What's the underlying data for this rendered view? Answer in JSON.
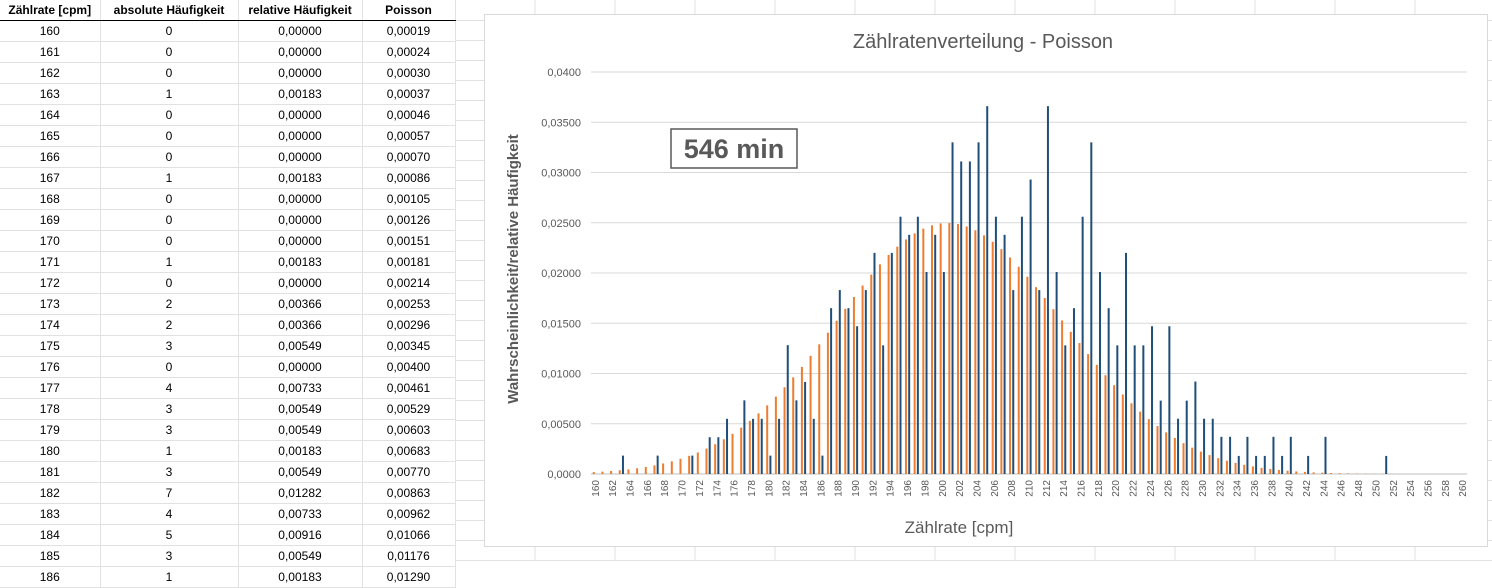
{
  "table": {
    "headers": [
      "Zählrate [cpm]",
      "absolute Häufigkeit",
      "relative Häufigkeit",
      "Poisson"
    ],
    "rows": [
      [
        "160",
        "0",
        "0,00000",
        "0,00019"
      ],
      [
        "161",
        "0",
        "0,00000",
        "0,00024"
      ],
      [
        "162",
        "0",
        "0,00000",
        "0,00030"
      ],
      [
        "163",
        "1",
        "0,00183",
        "0,00037"
      ],
      [
        "164",
        "0",
        "0,00000",
        "0,00046"
      ],
      [
        "165",
        "0",
        "0,00000",
        "0,00057"
      ],
      [
        "166",
        "0",
        "0,00000",
        "0,00070"
      ],
      [
        "167",
        "1",
        "0,00183",
        "0,00086"
      ],
      [
        "168",
        "0",
        "0,00000",
        "0,00105"
      ],
      [
        "169",
        "0",
        "0,00000",
        "0,00126"
      ],
      [
        "170",
        "0",
        "0,00000",
        "0,00151"
      ],
      [
        "171",
        "1",
        "0,00183",
        "0,00181"
      ],
      [
        "172",
        "0",
        "0,00000",
        "0,00214"
      ],
      [
        "173",
        "2",
        "0,00366",
        "0,00253"
      ],
      [
        "174",
        "2",
        "0,00366",
        "0,00296"
      ],
      [
        "175",
        "3",
        "0,00549",
        "0,00345"
      ],
      [
        "176",
        "0",
        "0,00000",
        "0,00400"
      ],
      [
        "177",
        "4",
        "0,00733",
        "0,00461"
      ],
      [
        "178",
        "3",
        "0,00549",
        "0,00529"
      ],
      [
        "179",
        "3",
        "0,00549",
        "0,00603"
      ],
      [
        "180",
        "1",
        "0,00183",
        "0,00683"
      ],
      [
        "181",
        "3",
        "0,00549",
        "0,00770"
      ],
      [
        "182",
        "7",
        "0,01282",
        "0,00863"
      ],
      [
        "183",
        "4",
        "0,00733",
        "0,00962"
      ],
      [
        "184",
        "5",
        "0,00916",
        "0,01066"
      ],
      [
        "185",
        "3",
        "0,00549",
        "0,01176"
      ],
      [
        "186",
        "1",
        "0,00183",
        "0,01290"
      ]
    ]
  },
  "chart_data": {
    "type": "bar",
    "title": "Zählratenverteilung - Poisson",
    "xlabel": "Zählrate [cpm]",
    "ylabel": "Wahrscheinlichkeit/relative Häufigkeit",
    "annotation": "546 min",
    "ylim": [
      0,
      0.04
    ],
    "yticks": [
      "0,0000",
      "0,00500",
      "0,01000",
      "0,01500",
      "0,02000",
      "0,02500",
      "0,03000",
      "0,03500",
      "0,0400"
    ],
    "x_start": 160,
    "x_end": 260,
    "xtick_step": 2,
    "grid": true,
    "legend": "none",
    "colors": {
      "relative": "#1f4e79",
      "poisson": "#ed7d31"
    },
    "series": [
      {
        "key": "relative",
        "values": [
          0,
          0,
          0,
          0.00183,
          0,
          0,
          0,
          0.00183,
          0,
          0,
          0,
          0.00183,
          0,
          0.00366,
          0.00366,
          0.00549,
          0,
          0.00733,
          0.00549,
          0.00549,
          0.00183,
          0.00549,
          0.01282,
          0.00733,
          0.00916,
          0.00549,
          0.00183,
          0.0165,
          0.0183,
          0.0165,
          0.0147,
          0.0183,
          0.022,
          0.0128,
          0.022,
          0.0256,
          0.0238,
          0.0256,
          0.0201,
          0.0238,
          0.0201,
          0.033,
          0.0311,
          0.0311,
          0.033,
          0.0366,
          0.0256,
          0.0238,
          0.0183,
          0.0256,
          0.0293,
          0.0183,
          0.0366,
          0.0201,
          0.0128,
          0.0165,
          0.0256,
          0.033,
          0.0201,
          0.0165,
          0.0128,
          0.022,
          0.0128,
          0.0128,
          0.0147,
          0.0073,
          0.0147,
          0.0055,
          0.0073,
          0.0092,
          0.0055,
          0.0055,
          0.0037,
          0.0037,
          0.0018,
          0.0037,
          0.0018,
          0.0018,
          0.0037,
          0.0018,
          0.0037,
          0,
          0.0018,
          0,
          0.0037,
          0,
          0,
          0,
          0,
          0,
          0,
          0.0018,
          0,
          0,
          0,
          0,
          0,
          0,
          0,
          0,
          0
        ]
      },
      {
        "key": "poisson",
        "values": [
          0.00019,
          0.00024,
          0.0003,
          0.00037,
          0.00046,
          0.00057,
          0.0007,
          0.00086,
          0.00105,
          0.00126,
          0.00151,
          0.00181,
          0.00214,
          0.00253,
          0.00296,
          0.00345,
          0.004,
          0.00461,
          0.00529,
          0.00603,
          0.00683,
          0.0077,
          0.00863,
          0.00962,
          0.01066,
          0.01176,
          0.0129,
          0.01406,
          0.01525,
          0.01644,
          0.01761,
          0.01875,
          0.01984,
          0.02086,
          0.02179,
          0.02262,
          0.02334,
          0.02394,
          0.02441,
          0.02474,
          0.02493,
          0.02498,
          0.02487,
          0.02463,
          0.02425,
          0.02374,
          0.02311,
          0.02237,
          0.02154,
          0.02062,
          0.01963,
          0.01859,
          0.01751,
          0.0164,
          0.01528,
          0.01415,
          0.01303,
          0.01193,
          0.01086,
          0.00983,
          0.00884,
          0.00791,
          0.00703,
          0.00621,
          0.00546,
          0.00477,
          0.00414,
          0.00358,
          0.00307,
          0.00262,
          0.00223,
          0.00188,
          0.00158,
          0.00132,
          0.0011,
          0.00091,
          0.00075,
          0.00061,
          0.0005,
          0.0004,
          0.00032,
          0.00026,
          0.00021,
          0.00016,
          0.00013,
          0.0001,
          8e-05,
          6e-05,
          5e-05,
          4e-05,
          3e-05,
          2e-05,
          2e-05,
          1e-05,
          1e-05,
          1e-05,
          1e-05,
          0,
          0,
          0,
          0
        ]
      }
    ]
  }
}
